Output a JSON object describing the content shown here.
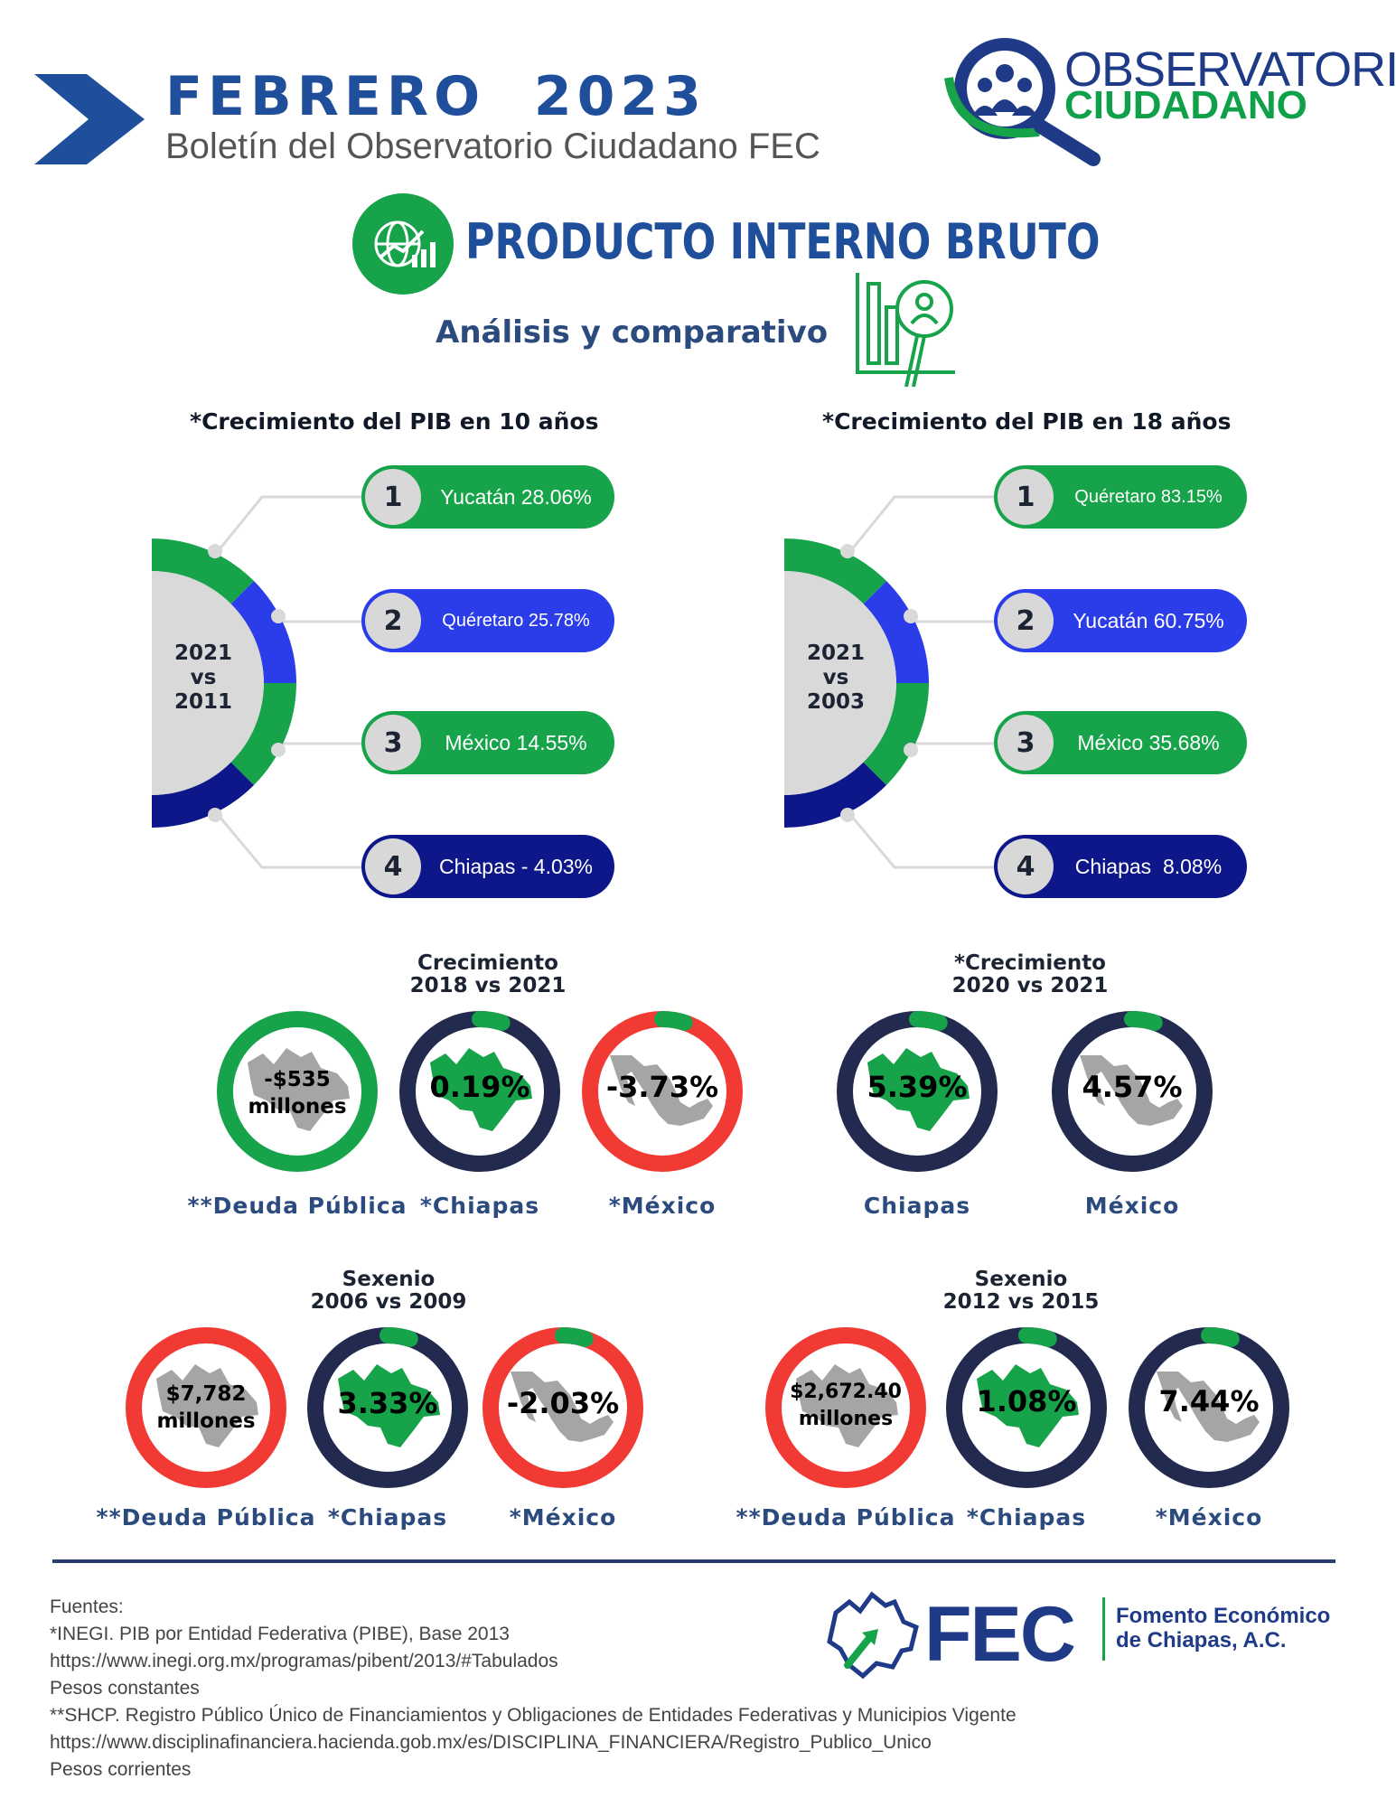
{
  "header": {
    "title": "FEBRERO  2023",
    "subtitle": "Boletín del Observatorio Ciudadano FEC",
    "logo_line1": "OBSERVATORIO",
    "logo_line2": "CIUDADANO"
  },
  "section": {
    "title": "PRODUCTO INTERNO BRUTO",
    "subtitle": "Análisis y comparativo"
  },
  "colors": {
    "green": "#16a34a",
    "blue": "#2b3de8",
    "navy": "#0d178a",
    "dark_ring": "#232a4f",
    "red": "#f23a34",
    "map_green": "#16a34a",
    "map_gray": "#a5a5a5"
  },
  "chart_data": [
    {
      "type": "table",
      "title": "*Crecimiento del PIB en 10 años",
      "period": [
        "2021",
        "vs",
        "2011"
      ],
      "items": [
        {
          "rank": "1",
          "label": "Yucatán 28.06%",
          "name": "Yucatán",
          "value": 28.06,
          "color": "green"
        },
        {
          "rank": "2",
          "label": "Quéretaro 25.78%",
          "name": "Quéretaro",
          "value": 25.78,
          "color": "blue"
        },
        {
          "rank": "3",
          "label": "México 14.55%",
          "name": "México",
          "value": 14.55,
          "color": "green"
        },
        {
          "rank": "4",
          "label": "Chiapas - 4.03%",
          "name": "Chiapas",
          "value": -4.03,
          "color": "navy"
        }
      ]
    },
    {
      "type": "table",
      "title": "*Crecimiento del PIB en 18 años",
      "period": [
        "2021",
        "vs",
        "2003"
      ],
      "items": [
        {
          "rank": "1",
          "label": "Quéretaro 83.15%",
          "name": "Quéretaro",
          "value": 83.15,
          "color": "green"
        },
        {
          "rank": "2",
          "label": "Yucatán 60.75%",
          "name": "Yucatán",
          "value": 60.75,
          "color": "blue"
        },
        {
          "rank": "3",
          "label": "México 35.68%",
          "name": "México",
          "value": 35.68,
          "color": "green"
        },
        {
          "rank": "4",
          "label": "Chiapas  8.08%",
          "name": "Chiapas",
          "value": 8.08,
          "color": "navy"
        }
      ]
    },
    {
      "type": "pie",
      "title": [
        "Crecimiento",
        "2018 vs 2021"
      ],
      "items": [
        {
          "caption": "**Deuda Pública",
          "value_lines": [
            "-$535",
            "millones"
          ],
          "ring": "green",
          "map": "chiapas",
          "map_color": "gray",
          "arc": false
        },
        {
          "caption": "*Chiapas",
          "value_lines": [
            "0.19%"
          ],
          "ring": "dark",
          "map": "chiapas",
          "map_color": "green",
          "arc": true
        },
        {
          "caption": "*México",
          "value_lines": [
            "-3.73%"
          ],
          "ring": "red",
          "map": "mexico",
          "map_color": "gray",
          "arc": true
        }
      ]
    },
    {
      "type": "pie",
      "title": [
        "*Crecimiento",
        "2020 vs 2021"
      ],
      "items": [
        {
          "caption": "Chiapas",
          "value_lines": [
            "5.39%"
          ],
          "ring": "dark",
          "map": "chiapas",
          "map_color": "green",
          "arc": true
        },
        {
          "caption": "México",
          "value_lines": [
            "4.57%"
          ],
          "ring": "dark",
          "map": "mexico",
          "map_color": "gray",
          "arc": true
        }
      ]
    },
    {
      "type": "pie",
      "title": [
        "Sexenio",
        "2006 vs 2009"
      ],
      "items": [
        {
          "caption": "**Deuda Pública",
          "value_lines": [
            "$7,782",
            "millones"
          ],
          "ring": "red",
          "map": "chiapas",
          "map_color": "gray",
          "arc": false
        },
        {
          "caption": "*Chiapas",
          "value_lines": [
            "3.33%"
          ],
          "ring": "dark",
          "map": "chiapas",
          "map_color": "green",
          "arc": true
        },
        {
          "caption": "*México",
          "value_lines": [
            "-2.03%"
          ],
          "ring": "red",
          "map": "mexico",
          "map_color": "gray",
          "arc": true
        }
      ]
    },
    {
      "type": "pie",
      "title": [
        "Sexenio",
        "2012 vs 2015"
      ],
      "items": [
        {
          "caption": "**Deuda Pública",
          "value_lines": [
            "$2,672.40",
            "millones"
          ],
          "ring": "red",
          "map": "chiapas",
          "map_color": "gray",
          "arc": false
        },
        {
          "caption": "*Chiapas",
          "value_lines": [
            "1.08%"
          ],
          "ring": "dark",
          "map": "chiapas",
          "map_color": "green",
          "arc": true
        },
        {
          "caption": "*México",
          "value_lines": [
            "7.44%"
          ],
          "ring": "dark",
          "map": "mexico",
          "map_color": "gray",
          "arc": true
        }
      ]
    }
  ],
  "sources": [
    "Fuentes:",
    "*INEGI. PIB por Entidad Federativa (PIBE), Base 2013",
    "https://www.inegi.org.mx/programas/pibent/2013/#Tabulados",
    "Pesos constantes",
    "**SHCP. Registro Público Único de Financiamientos y Obligaciones de Entidades Federativas y Municipios Vigente",
    "https://www.disciplinafinanciera.hacienda.gob.mx/es/DISCIPLINA_FINANCIERA/Registro_Publico_Unico",
    "Pesos corrientes"
  ],
  "footer": {
    "logo_text": "FEC",
    "org_line1": "Fomento Económico",
    "org_line2": "de Chiapas, A.C."
  }
}
